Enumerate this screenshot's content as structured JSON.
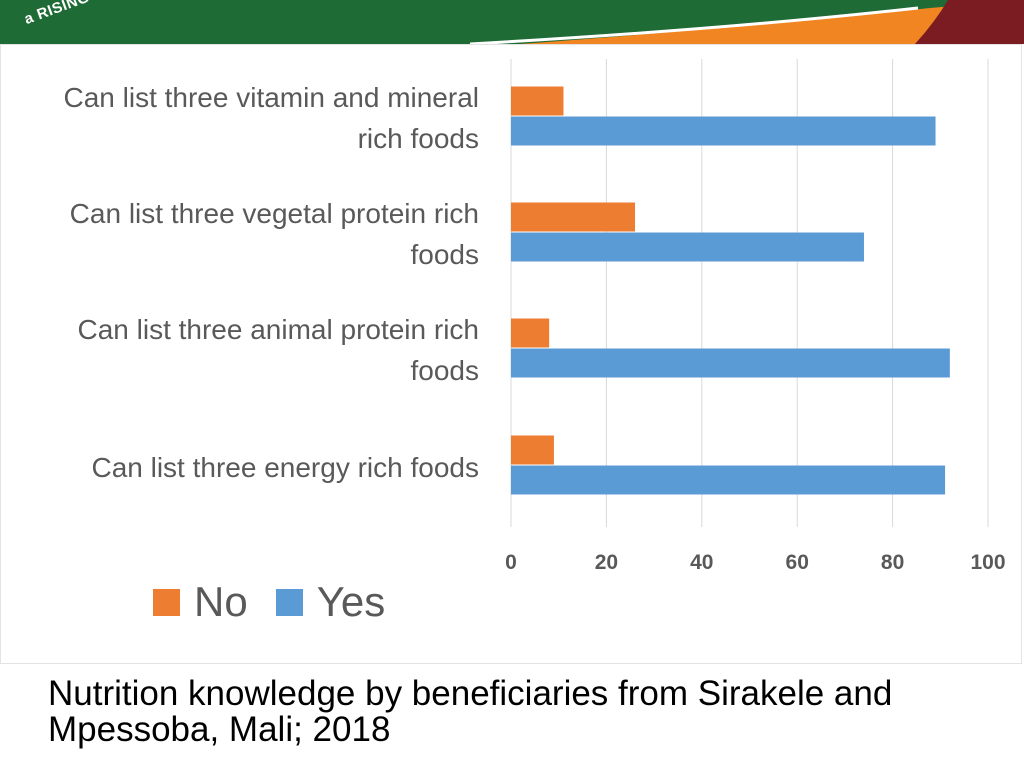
{
  "banner": {
    "logo_text": "a RISING",
    "colors": {
      "green": "#1e6b35",
      "orange": "#f08522",
      "maroon": "#7a1c22"
    }
  },
  "chart_data": {
    "type": "bar",
    "orientation": "horizontal",
    "categories": [
      "Can list three vitamin and mineral rich foods",
      "Can list three vegetal protein rich foods",
      "Can list three animal protein rich foods",
      "Can list three energy rich foods"
    ],
    "series": [
      {
        "name": "No",
        "color": "#ed7d31",
        "values": [
          11,
          26,
          8,
          9
        ]
      },
      {
        "name": "Yes",
        "color": "#5b9bd5",
        "values": [
          89,
          74,
          92,
          91
        ]
      }
    ],
    "xlim": [
      0,
      100
    ],
    "xticks": [
      "0",
      "20",
      "40",
      "60",
      "80",
      "100"
    ],
    "grid": true,
    "legend_position": "bottom-left"
  },
  "category_lines": [
    [
      "Can list three vitamin and mineral",
      "rich foods"
    ],
    [
      "Can list three vegetal protein rich",
      "foods"
    ],
    [
      "Can list three animal protein rich",
      "foods"
    ],
    [
      "Can list three energy rich foods"
    ]
  ],
  "caption": "Nutrition knowledge by beneficiaries from Sirakele and Mpessoba, Mali; 2018"
}
